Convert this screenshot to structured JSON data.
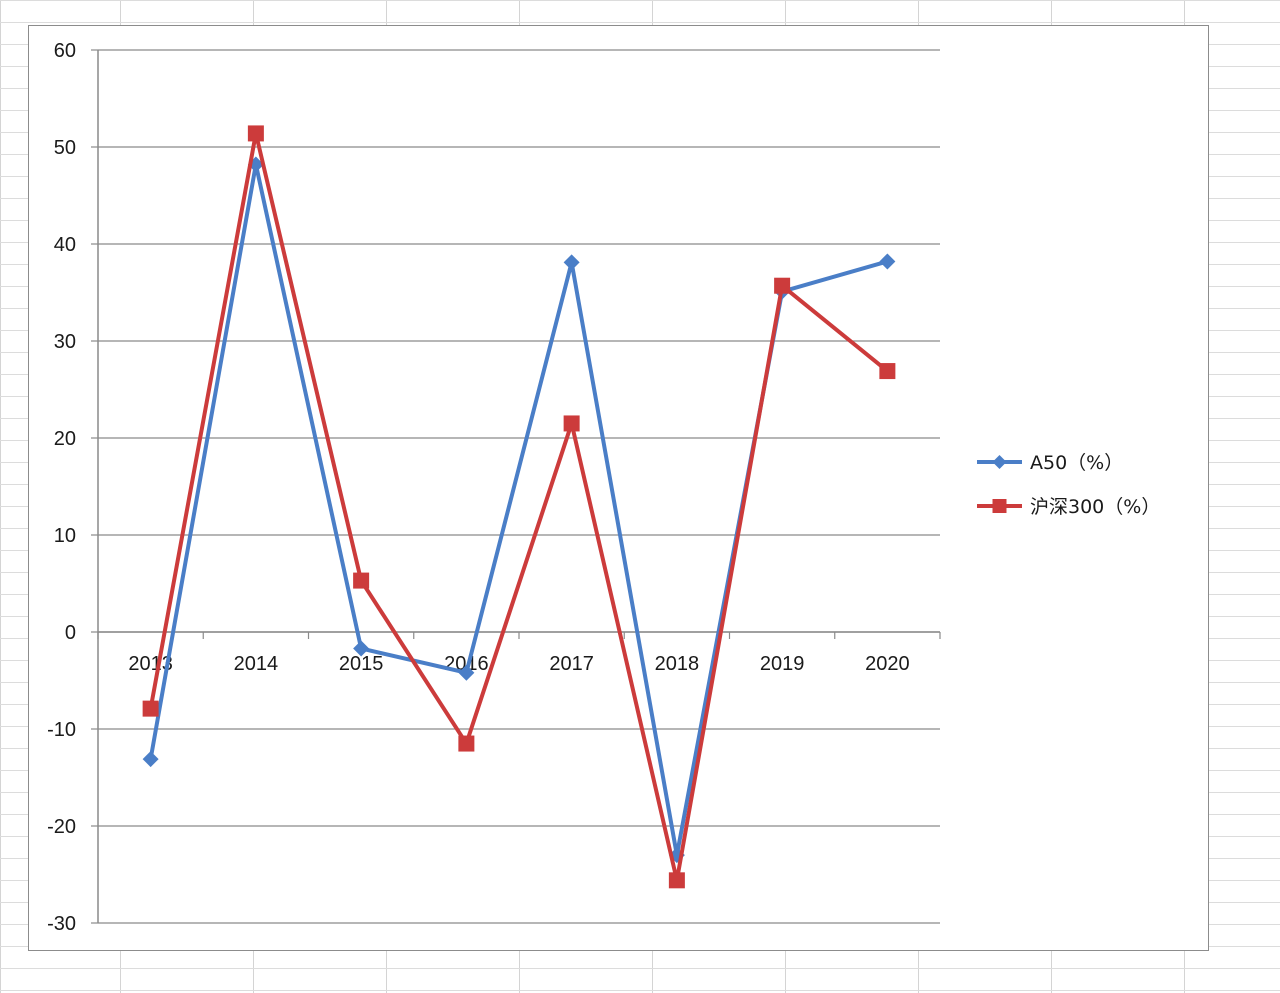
{
  "chart_data": {
    "type": "line",
    "categories": [
      "2013",
      "2014",
      "2015",
      "2016",
      "2017",
      "2018",
      "2019",
      "2020"
    ],
    "ylim": [
      -30,
      60
    ],
    "yticks": [
      60,
      50,
      40,
      30,
      20,
      10,
      0,
      -10,
      -20,
      -30
    ],
    "grid": true,
    "legend_position": "right",
    "series": [
      {
        "name": "A50（%）",
        "color": "#4a7ec7",
        "marker": "diamond",
        "values": [
          -13.1,
          48.2,
          -1.7,
          -4.2,
          38.1,
          -23.0,
          35.1,
          38.2
        ]
      },
      {
        "name": "沪深300（%）",
        "color": "#cc3b3b",
        "marker": "square",
        "values": [
          -7.9,
          51.4,
          5.3,
          -11.5,
          21.5,
          -25.6,
          35.7,
          26.9
        ]
      }
    ]
  }
}
